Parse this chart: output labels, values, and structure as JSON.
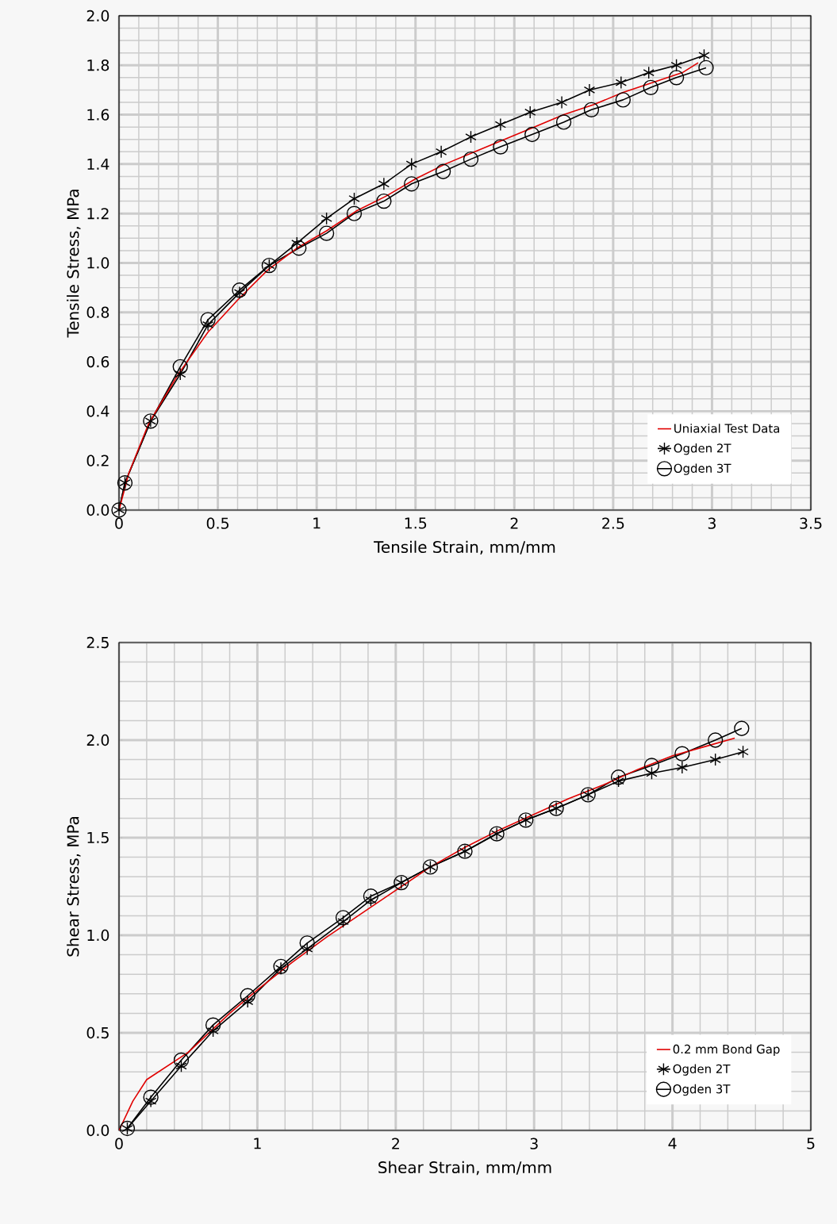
{
  "chart_data": [
    {
      "type": "line",
      "xlabel": "Tensile Strain, mm/mm",
      "ylabel": "Tensile Stress, MPa",
      "xlim": [
        0,
        3.5
      ],
      "ylim": [
        0,
        2.0
      ],
      "xticks": [
        0,
        0.5,
        1,
        1.5,
        2,
        2.5,
        3,
        3.5
      ],
      "yticks": [
        {
          "value": 0,
          "label": "0.0"
        },
        0.2,
        0.4,
        0.6,
        0.8,
        {
          "value": 1,
          "label": "1.0"
        },
        1.2,
        1.4,
        1.6,
        1.8,
        {
          "value": 2,
          "label": "2.0"
        }
      ],
      "grid": true,
      "legend": "bottom right",
      "series": [
        {
          "name": "Uniaxial Test Data",
          "color": "#e00000",
          "marker": "none",
          "x": [
            0,
            0.05,
            0.15,
            0.3,
            0.45,
            0.6,
            0.75,
            0.9,
            1.05,
            1.2,
            1.35,
            1.5,
            1.65,
            1.8,
            1.95,
            2.1,
            2.25,
            2.4,
            2.55,
            2.7,
            2.85,
            2.93
          ],
          "values": [
            0,
            0.15,
            0.35,
            0.55,
            0.72,
            0.85,
            0.97,
            1.06,
            1.13,
            1.21,
            1.27,
            1.34,
            1.4,
            1.45,
            1.5,
            1.55,
            1.6,
            1.64,
            1.69,
            1.73,
            1.77,
            1.81
          ]
        },
        {
          "name": "Ogden 2T",
          "color": "#000000",
          "marker": "cross",
          "x": [
            0,
            0.03,
            0.16,
            0.31,
            0.45,
            0.61,
            0.76,
            0.9,
            1.05,
            1.19,
            1.34,
            1.48,
            1.63,
            1.78,
            1.93,
            2.08,
            2.24,
            2.38,
            2.54,
            2.68,
            2.82,
            2.96
          ],
          "values": [
            0,
            0.11,
            0.36,
            0.55,
            0.75,
            0.88,
            0.99,
            1.08,
            1.18,
            1.26,
            1.32,
            1.4,
            1.45,
            1.51,
            1.56,
            1.61,
            1.65,
            1.7,
            1.73,
            1.77,
            1.8,
            1.84
          ]
        },
        {
          "name": "Ogden 3T",
          "color": "#000000",
          "marker": "circle",
          "x": [
            0,
            0.03,
            0.16,
            0.31,
            0.45,
            0.61,
            0.76,
            0.91,
            1.05,
            1.19,
            1.34,
            1.48,
            1.64,
            1.78,
            1.93,
            2.09,
            2.25,
            2.39,
            2.55,
            2.69,
            2.82,
            2.97
          ],
          "values": [
            0,
            0.11,
            0.36,
            0.58,
            0.77,
            0.89,
            0.99,
            1.06,
            1.12,
            1.2,
            1.25,
            1.32,
            1.37,
            1.42,
            1.47,
            1.52,
            1.57,
            1.62,
            1.66,
            1.71,
            1.75,
            1.79
          ]
        }
      ]
    },
    {
      "type": "line",
      "xlabel": "Shear Strain, mm/mm",
      "ylabel": "Shear Stress, MPa",
      "xlim": [
        0,
        5
      ],
      "ylim": [
        0,
        2.5
      ],
      "xticks": [
        0,
        1,
        2,
        3,
        4,
        5
      ],
      "yticks": [
        {
          "value": 0,
          "label": "0.0"
        },
        0.5,
        {
          "value": 1,
          "label": "1.0"
        },
        1.5,
        {
          "value": 2,
          "label": "2.0"
        },
        2.5
      ],
      "grid": true,
      "legend": "bottom right",
      "series": [
        {
          "name": "0.2 mm Bond Gap",
          "color": "#e00000",
          "marker": "none",
          "x": [
            0,
            0.1,
            0.2,
            0.5,
            0.8,
            1.0,
            1.25,
            1.5,
            1.75,
            2.0,
            2.25,
            2.5,
            2.75,
            3.0,
            3.25,
            3.5,
            3.75,
            4.0,
            4.25,
            4.45
          ],
          "values": [
            0,
            0.15,
            0.26,
            0.4,
            0.6,
            0.72,
            0.86,
            0.99,
            1.11,
            1.23,
            1.35,
            1.45,
            1.54,
            1.62,
            1.7,
            1.77,
            1.85,
            1.92,
            1.97,
            2.01
          ]
        },
        {
          "name": "Ogden 2T",
          "color": "#000000",
          "marker": "cross",
          "x": [
            0.06,
            0.23,
            0.45,
            0.68,
            0.93,
            1.17,
            1.36,
            1.62,
            1.82,
            2.04,
            2.25,
            2.5,
            2.73,
            2.94,
            3.16,
            3.39,
            3.61,
            3.85,
            4.07,
            4.31,
            4.51
          ],
          "values": [
            0.01,
            0.15,
            0.33,
            0.51,
            0.66,
            0.83,
            0.93,
            1.07,
            1.18,
            1.27,
            1.35,
            1.43,
            1.52,
            1.59,
            1.65,
            1.72,
            1.79,
            1.83,
            1.86,
            1.9,
            1.94
          ]
        },
        {
          "name": "Ogden 3T",
          "color": "#000000",
          "marker": "circle",
          "x": [
            0.06,
            0.23,
            0.45,
            0.68,
            0.93,
            1.17,
            1.36,
            1.62,
            1.82,
            2.04,
            2.25,
            2.5,
            2.73,
            2.94,
            3.16,
            3.39,
            3.61,
            3.85,
            4.07,
            4.31,
            4.5
          ],
          "values": [
            0.01,
            0.17,
            0.36,
            0.54,
            0.69,
            0.84,
            0.96,
            1.09,
            1.2,
            1.27,
            1.35,
            1.43,
            1.52,
            1.59,
            1.65,
            1.72,
            1.81,
            1.87,
            1.93,
            2.0,
            2.06
          ]
        }
      ]
    }
  ]
}
